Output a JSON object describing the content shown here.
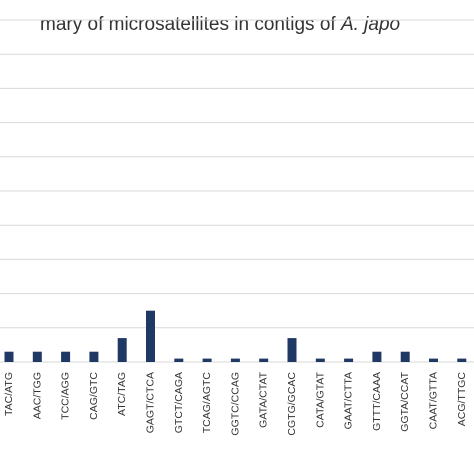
{
  "chart_data": {
    "type": "bar",
    "title_start": "mary of microsatellites in contigs of ",
    "title_italic": "A. japo",
    "title_end": "",
    "categories": [
      "TAC/ATG",
      "AAC/TGG",
      "TCC/AGG",
      "CAG/GTC",
      "ATC/TAG",
      "GAGT/CTCA",
      "GTCT/CAGA",
      "TCAG/AGTC",
      "GGTC/CCAG",
      "GATA/CTAT",
      "CGTG/GCAC",
      "CATA/GTAT",
      "GAAT/CTTA",
      "GTTT/CAAA",
      "GGTA/CCAT",
      "CAAT/GTTA",
      "ACG/TTGC"
    ],
    "values": [
      1.5,
      1.5,
      1.5,
      1.5,
      3.5,
      7.5,
      0.5,
      0.5,
      0.5,
      0.5,
      3.5,
      0.5,
      0.5,
      1.5,
      1.5,
      0.5,
      0.5
    ],
    "ylim": [
      0,
      50
    ],
    "gridlines": true,
    "bar_color": "#1f3864",
    "grid_color": "#d9d9d9"
  }
}
